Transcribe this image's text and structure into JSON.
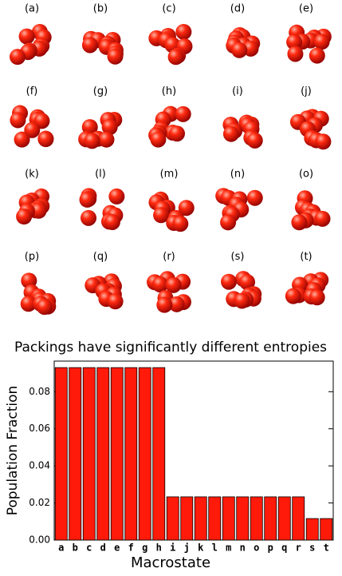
{
  "panel_labels": [
    "(a)",
    "(b)",
    "(c)",
    "(d)",
    "(e)",
    "(f)",
    "(g)",
    "(h)",
    "(i)",
    "(j)",
    "(k)",
    "(l)",
    "(m)",
    "(n)",
    "(o)",
    "(p)",
    "(q)",
    "(r)",
    "(s)",
    "(t)"
  ],
  "chart_data": {
    "type": "bar",
    "title": "Packings have significantly different entropies",
    "x_label": "Macrostate",
    "y_label": "Population Fraction",
    "categories": [
      "a",
      "b",
      "c",
      "d",
      "e",
      "f",
      "g",
      "h",
      "i",
      "j",
      "k",
      "l",
      "m",
      "n",
      "o",
      "p",
      "q",
      "r",
      "s",
      "t"
    ],
    "values": [
      0.093,
      0.093,
      0.093,
      0.093,
      0.093,
      0.093,
      0.093,
      0.093,
      0.0233,
      0.0233,
      0.0233,
      0.0233,
      0.0233,
      0.0233,
      0.0233,
      0.0233,
      0.0233,
      0.0233,
      0.0116,
      0.0116
    ],
    "color": "#ff1a0a",
    "ylim": [
      0,
      0.0965
    ],
    "yticks": [
      {
        "value": 0,
        "label": "0.00"
      },
      {
        "value": 0.02,
        "label": "0.02"
      },
      {
        "value": 0.04,
        "label": "0.04"
      },
      {
        "value": 0.06,
        "label": "0.06"
      },
      {
        "value": 0.08,
        "label": "0.08"
      }
    ],
    "grid": false
  }
}
